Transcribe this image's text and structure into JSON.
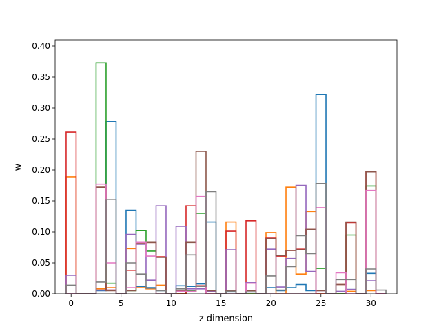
{
  "chart_data": {
    "type": "bar",
    "title": "",
    "xlabel": "z dimension",
    "ylabel": "w",
    "xlim": [
      -1.6,
      32.6
    ],
    "ylim": [
      0,
      0.41
    ],
    "grid": false,
    "legend": "none",
    "x_ticks": [
      0,
      5,
      10,
      15,
      20,
      25,
      30
    ],
    "y_ticks": [
      0.0,
      0.05,
      0.1,
      0.15,
      0.2,
      0.25,
      0.3,
      0.35,
      0.4
    ],
    "x_tick_labels": [
      "0",
      "5",
      "10",
      "15",
      "20",
      "25",
      "30"
    ],
    "y_tick_labels": [
      "0.00",
      "0.05",
      "0.10",
      "0.15",
      "0.20",
      "0.25",
      "0.30",
      "0.35",
      "0.40"
    ],
    "bar_width": 1,
    "categories": [
      0,
      1,
      2,
      3,
      4,
      5,
      6,
      7,
      8,
      9,
      10,
      11,
      12,
      13,
      14,
      15,
      16,
      17,
      18,
      19,
      20,
      21,
      22,
      23,
      24,
      25,
      26,
      27,
      28,
      29,
      30,
      31
    ],
    "series": [
      {
        "color": "#1f77b4",
        "values": [
          0,
          0,
          0,
          0.005,
          0.278,
          0,
          0.135,
          0.012,
          0.01,
          0.005,
          0,
          0.013,
          0.012,
          0.016,
          0.116,
          0,
          0.003,
          0,
          0.003,
          0,
          0.01,
          0.005,
          0.01,
          0.015,
          0.005,
          0.322,
          0,
          0,
          0.007,
          0,
          0.033,
          0
        ]
      },
      {
        "color": "#ff7f0e",
        "values": [
          0.189,
          0,
          0,
          0.008,
          0.01,
          0,
          0.073,
          0.01,
          0.008,
          0.014,
          0,
          0,
          0.004,
          0.012,
          0.005,
          0,
          0.116,
          0,
          0,
          0,
          0.099,
          0,
          0.172,
          0.032,
          0.133,
          0,
          0,
          0,
          0.004,
          0,
          0.005,
          0
        ]
      },
      {
        "color": "#2ca02c",
        "values": [
          0,
          0,
          0,
          0.373,
          0.017,
          0,
          0.005,
          0.102,
          0.069,
          0,
          0,
          0,
          0.005,
          0.13,
          0,
          0,
          0,
          0,
          0,
          0,
          0,
          0,
          0,
          0,
          0,
          0.041,
          0,
          0,
          0.095,
          0,
          0.174,
          0
        ]
      },
      {
        "color": "#d62728",
        "values": [
          0.261,
          0,
          0,
          0.172,
          0.006,
          0,
          0.038,
          0.081,
          0.083,
          0.06,
          0,
          0,
          0.142,
          0.013,
          0,
          0,
          0.101,
          0,
          0.118,
          0,
          0.09,
          0.061,
          0.07,
          0.072,
          0.104,
          0,
          0,
          0.015,
          0.115,
          0,
          0.197,
          0
        ]
      },
      {
        "color": "#9467bd",
        "values": [
          0.03,
          0,
          0,
          0.006,
          0.006,
          0,
          0.096,
          0.08,
          0.022,
          0.142,
          0,
          0.109,
          0.008,
          0.008,
          0.004,
          0,
          0.071,
          0,
          0.018,
          0,
          0.072,
          0.011,
          0.057,
          0.175,
          0.036,
          0.005,
          0,
          0.004,
          0.007,
          0,
          0.021,
          0
        ]
      },
      {
        "color": "#8c564b",
        "values": [
          0,
          0,
          0,
          0.172,
          0.005,
          0,
          0.005,
          0.081,
          0.083,
          0.059,
          0,
          0.005,
          0.083,
          0.23,
          0.005,
          0,
          0.005,
          0,
          0.005,
          0,
          0.089,
          0.062,
          0.07,
          0.071,
          0.104,
          0.005,
          0,
          0.015,
          0.116,
          0,
          0.197,
          0
        ]
      },
      {
        "color": "#e377c2",
        "values": [
          0,
          0,
          0,
          0.177,
          0.05,
          0,
          0.01,
          0.083,
          0.061,
          0,
          0,
          0.004,
          0.004,
          0.157,
          0,
          0,
          0,
          0,
          0.017,
          0,
          0,
          0,
          0,
          0,
          0,
          0.139,
          0,
          0.034,
          0,
          0,
          0.167,
          0
        ]
      },
      {
        "color": "#7f7f7f",
        "values": [
          0.014,
          0,
          0,
          0.019,
          0.152,
          0,
          0.05,
          0.032,
          0.009,
          0.005,
          0,
          0.008,
          0.063,
          0.012,
          0.165,
          0,
          0.004,
          0,
          0.003,
          0,
          0.029,
          0.006,
          0.044,
          0.094,
          0.065,
          0.178,
          0,
          0.023,
          0.023,
          0,
          0.04,
          0.006
        ]
      }
    ]
  }
}
